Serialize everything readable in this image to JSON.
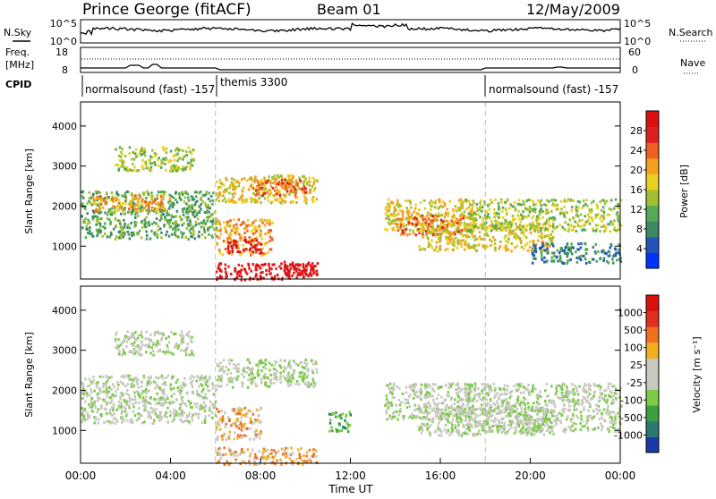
{
  "header": {
    "station": "Prince George (fitACF)",
    "beam": "Beam 01",
    "date": "12/May/2009"
  },
  "side_labels": {
    "nsky": "N.Sky",
    "nsearch": "N.Search",
    "freq_line1": "Freq.",
    "freq_line2": "[MHz]",
    "nave": "Nave",
    "cpid": "CPID"
  },
  "noise_panel": {
    "left_ticks": [
      "10^5",
      "10^0"
    ],
    "right_ticks": [
      "10^5",
      "10^0"
    ]
  },
  "freq_panel": {
    "left_ticks": [
      "18",
      "8"
    ],
    "right_ticks": [
      "60",
      "0"
    ]
  },
  "cpid_segments": [
    {
      "label": "normalsound (fast)  -157",
      "start_hour": 0
    },
    {
      "label": "themis 3300",
      "start_hour": 6
    },
    {
      "label": "normalsound (fast)  -157",
      "start_hour": 18
    }
  ],
  "x_axis": {
    "label": "Time UT",
    "ticks": [
      "00:00",
      "04:00",
      "08:00",
      "12:00",
      "16:00",
      "20:00",
      "00:00"
    ]
  },
  "chart_data": [
    {
      "type": "heatmap",
      "parameter": "Power",
      "xlabel": "Time UT",
      "ylabel": "Slant Range [km]",
      "xlim": [
        0,
        24
      ],
      "ylim": [
        180,
        4600
      ],
      "y_ticks": [
        1000,
        2000,
        3000,
        4000
      ],
      "colorbar": {
        "label": "Power [dB]",
        "ticks": [
          "4",
          "8",
          "12",
          "16",
          "20",
          "24",
          "28"
        ],
        "colors": [
          "#0033ff",
          "#2255bb",
          "#3a8a66",
          "#55aa55",
          "#a0c030",
          "#e8d020",
          "#f5a020",
          "#f06020",
          "#e02020",
          "#dd1010"
        ]
      },
      "regions": [
        {
          "t": [
            0.0,
            6.0
          ],
          "r": [
            1200,
            2400
          ],
          "level": 3
        },
        {
          "t": [
            0.5,
            4.0
          ],
          "r": [
            1900,
            2300
          ],
          "level": 6
        },
        {
          "t": [
            1.5,
            5.0
          ],
          "r": [
            2900,
            3500
          ],
          "level": 4
        },
        {
          "t": [
            6.0,
            10.5
          ],
          "r": [
            2100,
            2800
          ],
          "level": 5
        },
        {
          "t": [
            7.5,
            10.0
          ],
          "r": [
            2300,
            2700
          ],
          "level": 7
        },
        {
          "t": [
            6.0,
            8.5
          ],
          "r": [
            800,
            1700
          ],
          "level": 6
        },
        {
          "t": [
            6.5,
            8.0
          ],
          "r": [
            850,
            1200
          ],
          "level": 9
        },
        {
          "t": [
            6.0,
            10.5
          ],
          "r": [
            180,
            600
          ],
          "level": 9
        },
        {
          "t": [
            9.0,
            10.5
          ],
          "r": [
            300,
            650
          ],
          "level": 9
        },
        {
          "t": [
            13.5,
            17.5
          ],
          "r": [
            1400,
            2200
          ],
          "level": 5
        },
        {
          "t": [
            14.0,
            17.0
          ],
          "r": [
            1300,
            1800
          ],
          "level": 7
        },
        {
          "t": [
            15.0,
            21.0
          ],
          "r": [
            900,
            1600
          ],
          "level": 5
        },
        {
          "t": [
            17.0,
            24.0
          ],
          "r": [
            1400,
            2200
          ],
          "level": 4
        },
        {
          "t": [
            20.0,
            24.0
          ],
          "r": [
            600,
            1100
          ],
          "level": 2
        }
      ]
    },
    {
      "type": "heatmap",
      "parameter": "Velocity",
      "xlabel": "Time UT",
      "ylabel": "Slant Range [km]",
      "xlim": [
        0,
        24
      ],
      "ylim": [
        180,
        4600
      ],
      "y_ticks": [
        1000,
        2000,
        3000,
        4000
      ],
      "colorbar": {
        "label": "Velocity  [m s⁻¹]",
        "ticks": [
          "1000",
          "500",
          "100",
          "25",
          "-25",
          "-100",
          "-500",
          "-1000"
        ],
        "colors": [
          "#1a3aa8",
          "#2a7a70",
          "#3aa040",
          "#7acb45",
          "#c8c8c0",
          "#c8c8c0",
          "#f0b020",
          "#f07020",
          "#e03020",
          "#dd1010"
        ]
      },
      "regions": [
        {
          "t": [
            0.0,
            6.0
          ],
          "r": [
            1200,
            2400
          ],
          "level": 4
        },
        {
          "t": [
            1.5,
            5.0
          ],
          "r": [
            2900,
            3500
          ],
          "level": 4
        },
        {
          "t": [
            6.0,
            10.5
          ],
          "r": [
            2100,
            2800
          ],
          "level": 4
        },
        {
          "t": [
            6.0,
            8.0
          ],
          "r": [
            800,
            1600
          ],
          "level": 6
        },
        {
          "t": [
            6.0,
            10.5
          ],
          "r": [
            180,
            600
          ],
          "level": 6
        },
        {
          "t": [
            13.5,
            17.5
          ],
          "r": [
            1300,
            2200
          ],
          "level": 4
        },
        {
          "t": [
            15.0,
            21.0
          ],
          "r": [
            900,
            1600
          ],
          "level": 4
        },
        {
          "t": [
            17.0,
            24.0
          ],
          "r": [
            1000,
            2200
          ],
          "level": 4
        },
        {
          "t": [
            11.0,
            12.0
          ],
          "r": [
            1000,
            1500
          ],
          "level": 2
        }
      ]
    }
  ]
}
